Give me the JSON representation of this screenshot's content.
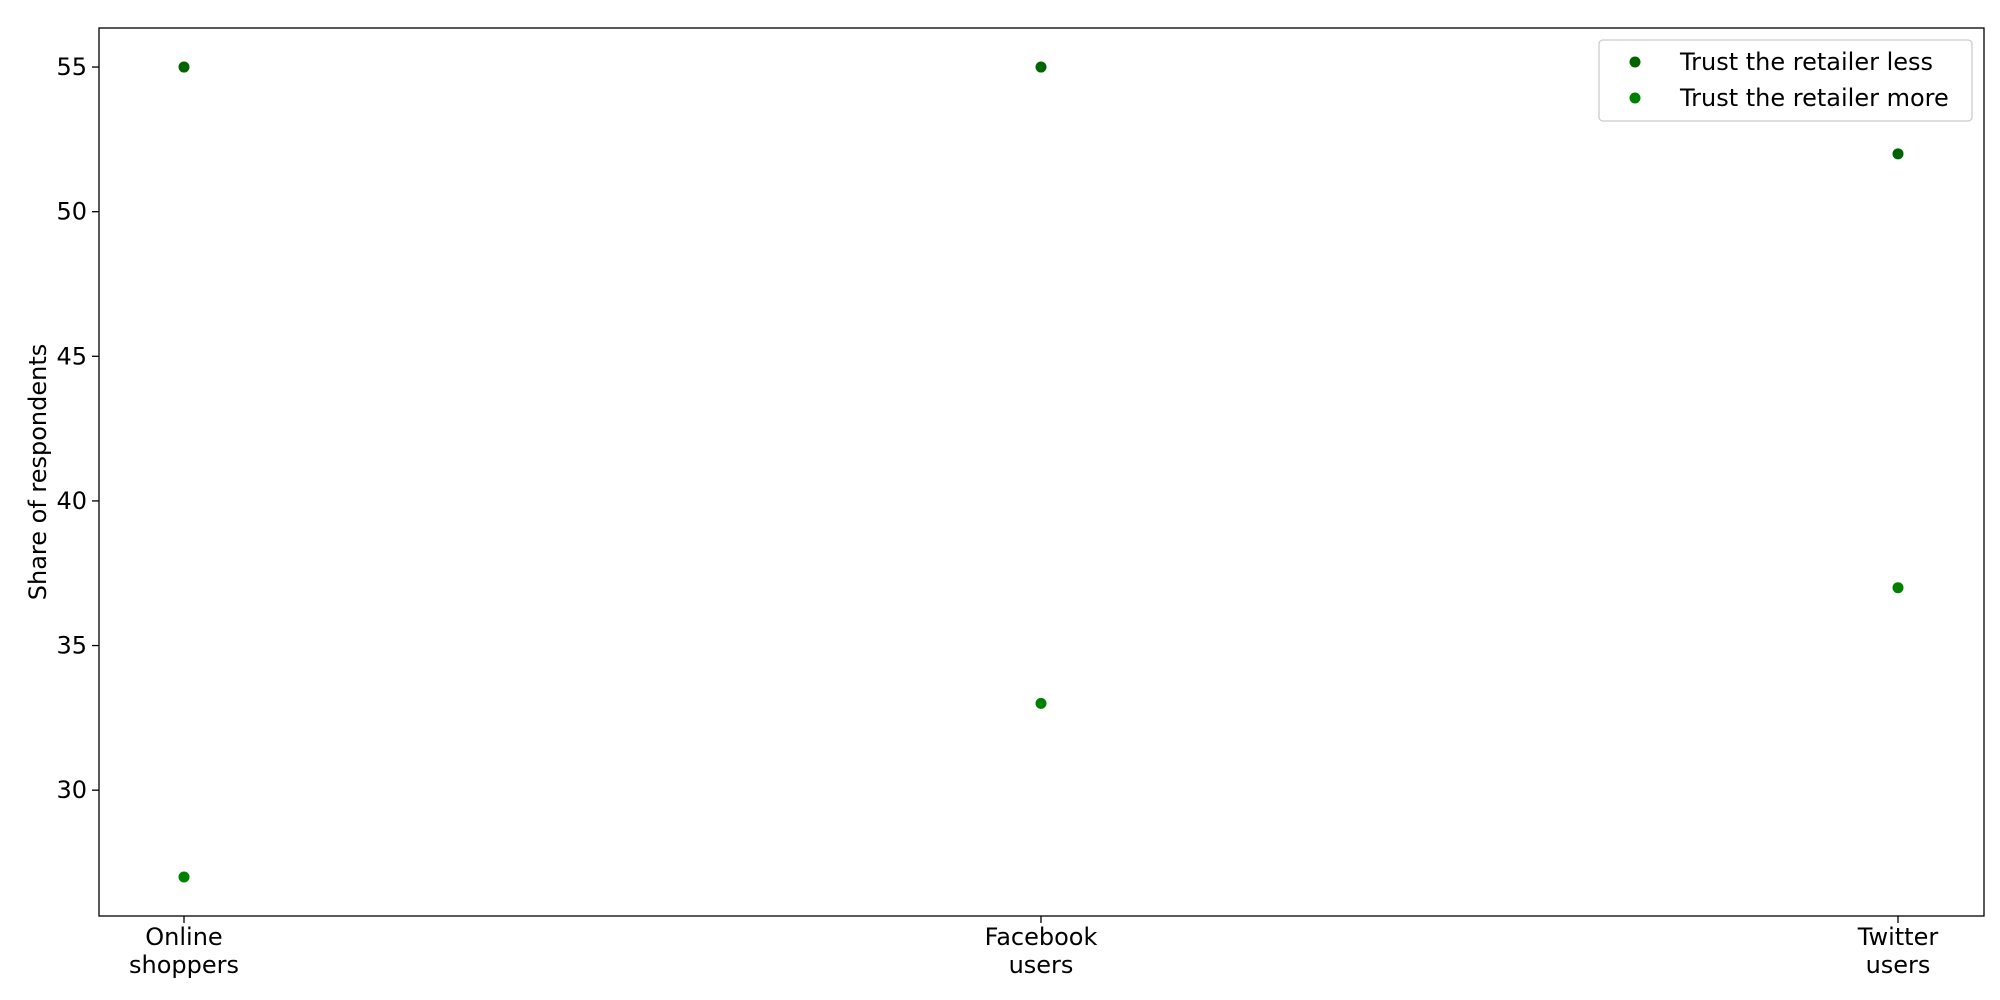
{
  "chart_data": {
    "type": "scatter",
    "title": "",
    "xlabel": "",
    "ylabel": "Share of respondents",
    "categories": [
      [
        "Online",
        "shoppers"
      ],
      [
        "Facebook",
        "users"
      ],
      [
        "Twitter",
        "users"
      ]
    ],
    "series": [
      {
        "name": "Trust the retailer less",
        "color": "#006400",
        "values": [
          55,
          55,
          52
        ]
      },
      {
        "name": "Trust the retailer more",
        "color": "#008000",
        "values": [
          27,
          33,
          37
        ]
      }
    ],
    "ylim": [
      25.65,
      56.35
    ],
    "yticks": [
      30,
      35,
      40,
      45,
      50,
      55
    ],
    "grid": false,
    "legend_position": "top-right"
  }
}
